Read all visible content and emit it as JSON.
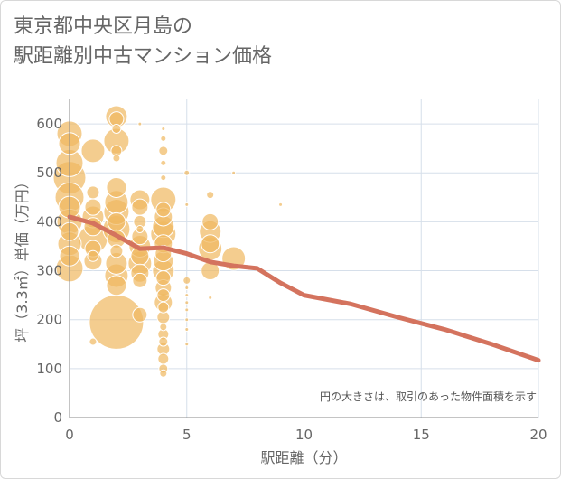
{
  "title": "東京都中央区月島の\n駅距離別中古マンション価格",
  "chart_data": {
    "type": "scatter",
    "title": "東京都中央区月島の 駅距離別中古マンション価格",
    "xlabel": "駅距離（分）",
    "ylabel": "坪（3.3㎡）単価（万円）",
    "annotation": "円の大きさは、取引のあった物件面積を示す",
    "xlim": [
      0,
      20
    ],
    "ylim": [
      0,
      650
    ],
    "xticks": [
      0,
      5,
      10,
      15,
      20
    ],
    "yticks": [
      0,
      100,
      200,
      300,
      400,
      500,
      600
    ],
    "grid": true,
    "colors": {
      "bubble": "#f0b860",
      "bubble_stroke": "#ffffff",
      "line": "#d4735e",
      "grid": "#d6dfea",
      "axis": "#888888"
    },
    "series": [
      {
        "kind": "bubble",
        "points": [
          {
            "x": 0,
            "y": 580,
            "s": 14
          },
          {
            "x": 0,
            "y": 560,
            "s": 12
          },
          {
            "x": 0,
            "y": 520,
            "s": 15
          },
          {
            "x": 0,
            "y": 490,
            "s": 18
          },
          {
            "x": 0,
            "y": 450,
            "s": 16
          },
          {
            "x": 0,
            "y": 430,
            "s": 12
          },
          {
            "x": 0,
            "y": 400,
            "s": 14
          },
          {
            "x": 0,
            "y": 380,
            "s": 10
          },
          {
            "x": 0,
            "y": 355,
            "s": 13
          },
          {
            "x": 0,
            "y": 330,
            "s": 11
          },
          {
            "x": 0,
            "y": 305,
            "s": 15
          },
          {
            "x": 1,
            "y": 545,
            "s": 13
          },
          {
            "x": 1,
            "y": 460,
            "s": 7
          },
          {
            "x": 1,
            "y": 430,
            "s": 9
          },
          {
            "x": 1,
            "y": 410,
            "s": 12
          },
          {
            "x": 1,
            "y": 390,
            "s": 10
          },
          {
            "x": 1,
            "y": 365,
            "s": 16
          },
          {
            "x": 1,
            "y": 345,
            "s": 9
          },
          {
            "x": 1,
            "y": 330,
            "s": 6
          },
          {
            "x": 1,
            "y": 320,
            "s": 10
          },
          {
            "x": 1,
            "y": 155,
            "s": 4
          },
          {
            "x": 2,
            "y": 615,
            "s": 12
          },
          {
            "x": 2,
            "y": 610,
            "s": 8
          },
          {
            "x": 2,
            "y": 590,
            "s": 5
          },
          {
            "x": 2,
            "y": 565,
            "s": 14
          },
          {
            "x": 2,
            "y": 545,
            "s": 6
          },
          {
            "x": 2,
            "y": 530,
            "s": 4
          },
          {
            "x": 2,
            "y": 470,
            "s": 11
          },
          {
            "x": 2,
            "y": 440,
            "s": 13
          },
          {
            "x": 2,
            "y": 420,
            "s": 14
          },
          {
            "x": 2,
            "y": 400,
            "s": 10
          },
          {
            "x": 2,
            "y": 385,
            "s": 15
          },
          {
            "x": 2,
            "y": 365,
            "s": 10
          },
          {
            "x": 2,
            "y": 340,
            "s": 7
          },
          {
            "x": 2,
            "y": 315,
            "s": 12
          },
          {
            "x": 2,
            "y": 290,
            "s": 13
          },
          {
            "x": 2,
            "y": 270,
            "s": 11
          },
          {
            "x": 2,
            "y": 195,
            "s": 30
          },
          {
            "x": 3,
            "y": 600,
            "s": 2
          },
          {
            "x": 3,
            "y": 445,
            "s": 11
          },
          {
            "x": 3,
            "y": 430,
            "s": 9
          },
          {
            "x": 3,
            "y": 400,
            "s": 7
          },
          {
            "x": 3,
            "y": 385,
            "s": 4
          },
          {
            "x": 3,
            "y": 370,
            "s": 9
          },
          {
            "x": 3,
            "y": 350,
            "s": 12
          },
          {
            "x": 3,
            "y": 330,
            "s": 10
          },
          {
            "x": 3,
            "y": 315,
            "s": 13
          },
          {
            "x": 3,
            "y": 295,
            "s": 10
          },
          {
            "x": 3,
            "y": 280,
            "s": 8
          },
          {
            "x": 3,
            "y": 210,
            "s": 8
          },
          {
            "x": 4,
            "y": 590,
            "s": 2
          },
          {
            "x": 4,
            "y": 570,
            "s": 3
          },
          {
            "x": 4,
            "y": 545,
            "s": 5
          },
          {
            "x": 4,
            "y": 520,
            "s": 3
          },
          {
            "x": 4,
            "y": 490,
            "s": 3
          },
          {
            "x": 4,
            "y": 445,
            "s": 14
          },
          {
            "x": 4,
            "y": 425,
            "s": 8
          },
          {
            "x": 4,
            "y": 410,
            "s": 10
          },
          {
            "x": 4,
            "y": 390,
            "s": 12
          },
          {
            "x": 4,
            "y": 375,
            "s": 14
          },
          {
            "x": 4,
            "y": 355,
            "s": 10
          },
          {
            "x": 4,
            "y": 335,
            "s": 9
          },
          {
            "x": 4,
            "y": 320,
            "s": 11
          },
          {
            "x": 4,
            "y": 300,
            "s": 12
          },
          {
            "x": 4,
            "y": 285,
            "s": 8
          },
          {
            "x": 4,
            "y": 265,
            "s": 9
          },
          {
            "x": 4,
            "y": 250,
            "s": 7
          },
          {
            "x": 4,
            "y": 235,
            "s": 10
          },
          {
            "x": 4,
            "y": 225,
            "s": 6
          },
          {
            "x": 4,
            "y": 205,
            "s": 7
          },
          {
            "x": 4,
            "y": 185,
            "s": 4
          },
          {
            "x": 4,
            "y": 170,
            "s": 6
          },
          {
            "x": 4,
            "y": 155,
            "s": 5
          },
          {
            "x": 4,
            "y": 140,
            "s": 7
          },
          {
            "x": 4,
            "y": 120,
            "s": 6
          },
          {
            "x": 4,
            "y": 100,
            "s": 5
          },
          {
            "x": 4,
            "y": 90,
            "s": 4
          },
          {
            "x": 5,
            "y": 500,
            "s": 3
          },
          {
            "x": 5,
            "y": 435,
            "s": 2
          },
          {
            "x": 5,
            "y": 280,
            "s": 4
          },
          {
            "x": 5,
            "y": 265,
            "s": 2
          },
          {
            "x": 5,
            "y": 250,
            "s": 2
          },
          {
            "x": 5,
            "y": 235,
            "s": 2
          },
          {
            "x": 5,
            "y": 220,
            "s": 2
          },
          {
            "x": 5,
            "y": 200,
            "s": 2
          },
          {
            "x": 5,
            "y": 180,
            "s": 2
          },
          {
            "x": 5,
            "y": 150,
            "s": 2
          },
          {
            "x": 6,
            "y": 455,
            "s": 4
          },
          {
            "x": 6,
            "y": 400,
            "s": 9
          },
          {
            "x": 6,
            "y": 380,
            "s": 12
          },
          {
            "x": 6,
            "y": 355,
            "s": 10
          },
          {
            "x": 6,
            "y": 345,
            "s": 13
          },
          {
            "x": 6,
            "y": 300,
            "s": 10
          },
          {
            "x": 6,
            "y": 245,
            "s": 2
          },
          {
            "x": 7,
            "y": 500,
            "s": 2
          },
          {
            "x": 7,
            "y": 325,
            "s": 13
          },
          {
            "x": 9,
            "y": 435,
            "s": 2
          }
        ]
      },
      {
        "kind": "line",
        "name": "",
        "x": [
          0,
          1,
          2,
          3,
          4,
          5,
          6,
          7,
          8,
          9,
          10,
          12,
          14,
          16,
          18,
          20
        ],
        "y": [
          410,
          397,
          372,
          345,
          347,
          335,
          318,
          310,
          305,
          275,
          250,
          232,
          205,
          180,
          150,
          117
        ]
      }
    ]
  }
}
